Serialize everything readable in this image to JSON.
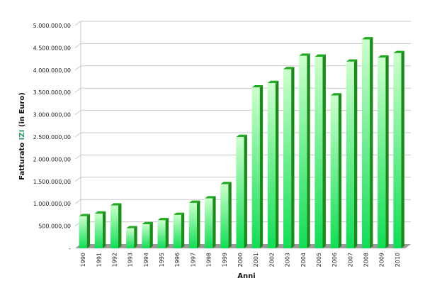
{
  "chart_data": {
    "type": "bar",
    "style": "3d",
    "categories": [
      "1990",
      "1991",
      "1992",
      "1993",
      "1994",
      "1995",
      "1996",
      "1997",
      "1998",
      "1999",
      "2000",
      "2001",
      "2002",
      "2003",
      "2004",
      "2005",
      "2006",
      "2007",
      "2008",
      "2009",
      "2010"
    ],
    "series": [
      {
        "values": [
          720000,
          780000,
          960000,
          450000,
          540000,
          630000,
          750000,
          1020000,
          1120000,
          1440000,
          2500000,
          3610000,
          3710000,
          4020000,
          4320000,
          4300000,
          3430000,
          4190000,
          4690000,
          4280000,
          4380000
        ]
      }
    ],
    "xlabel": "Anni",
    "ylabel_parts": [
      "Fatturato ",
      "IZI",
      " (in Euro)"
    ],
    "ylim": [
      0,
      5000000
    ],
    "yticks": [
      0,
      500000,
      1000000,
      1500000,
      2000000,
      2500000,
      3000000,
      3500000,
      4000000,
      4500000,
      5000000
    ],
    "ytick_labels": [
      "-",
      "500.000,00",
      "1.000.000,00",
      "1.500.000,00",
      "2.000.000,00",
      "2.500.000,00",
      "3.000.000,00",
      "3.500.000,00",
      "4.000.000,00",
      "4.500.000,00",
      "5.000.000,00"
    ],
    "grid": true,
    "legend": "none",
    "colors": {
      "bar_front_light": "#ccffcc",
      "bar_front_dark": "#11dd55",
      "bar_side": "#1a8a1a",
      "bar_top": "#22aa22",
      "floor": "#9a9a9a",
      "grid": "#c9c9c9",
      "brand_highlight": "#2a9d6a"
    }
  }
}
